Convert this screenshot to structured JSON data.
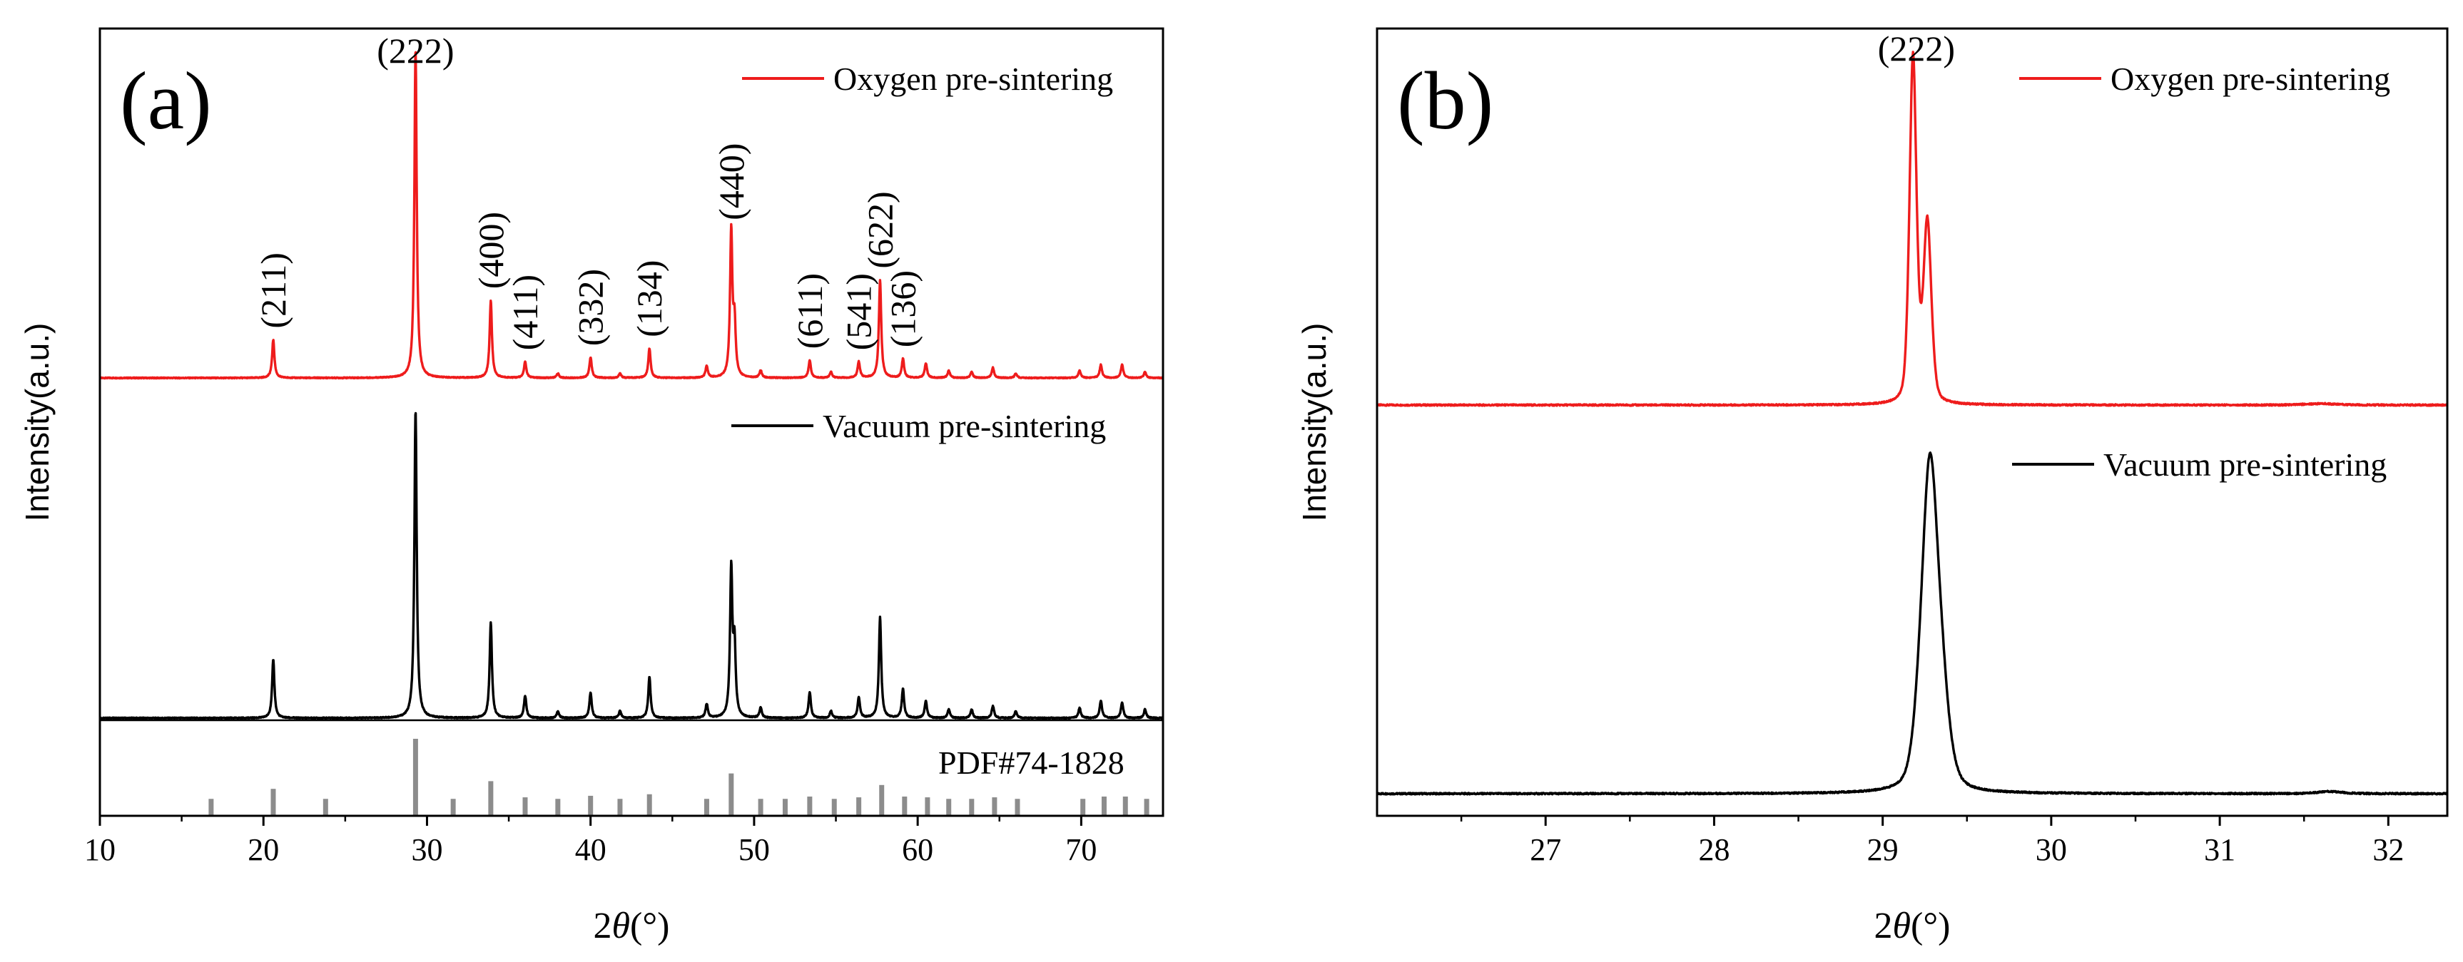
{
  "chart_data": [
    {
      "type": "line",
      "panel_label": "(a)",
      "xlabel_prefix": "2",
      "xlabel_symbol": "θ",
      "xlabel_suffix": "(°)",
      "ylabel": "Intensity(a.u.)",
      "xlim": [
        10,
        75
      ],
      "xticks": [
        10,
        20,
        30,
        40,
        50,
        60,
        70
      ],
      "grid": false,
      "legend_position": "top-right",
      "series": [
        {
          "name": "Oxygen pre-sintering",
          "color": "#ee1c1c",
          "peaks": [
            {
              "x": 20.6,
              "h": 0.26,
              "label": "(211)"
            },
            {
              "x": 29.3,
              "h": 2.25,
              "label": "(222)"
            },
            {
              "x": 33.9,
              "h": 0.53,
              "label": "(400)"
            },
            {
              "x": 36.0,
              "h": 0.11,
              "label": "(411)"
            },
            {
              "x": 38.0,
              "h": 0.03
            },
            {
              "x": 40.0,
              "h": 0.14,
              "label": "(332)"
            },
            {
              "x": 41.8,
              "h": 0.03
            },
            {
              "x": 43.6,
              "h": 0.2,
              "label": "(134)"
            },
            {
              "x": 47.1,
              "h": 0.08
            },
            {
              "x": 48.6,
              "h": 1.0,
              "label": "(440)"
            },
            {
              "x": 48.8,
              "h": 0.35
            },
            {
              "x": 50.4,
              "h": 0.05
            },
            {
              "x": 53.4,
              "h": 0.12,
              "label": "(611)"
            },
            {
              "x": 54.7,
              "h": 0.04
            },
            {
              "x": 56.4,
              "h": 0.11,
              "label": "(541)"
            },
            {
              "x": 57.7,
              "h": 0.67,
              "label": "(622)"
            },
            {
              "x": 59.1,
              "h": 0.13,
              "label": "(136)"
            },
            {
              "x": 60.5,
              "h": 0.1
            },
            {
              "x": 61.9,
              "h": 0.05
            },
            {
              "x": 63.3,
              "h": 0.04
            },
            {
              "x": 64.6,
              "h": 0.07
            },
            {
              "x": 66.0,
              "h": 0.03
            },
            {
              "x": 69.9,
              "h": 0.05
            },
            {
              "x": 71.2,
              "h": 0.09
            },
            {
              "x": 72.5,
              "h": 0.09
            },
            {
              "x": 73.9,
              "h": 0.04
            }
          ]
        },
        {
          "name": "Vacuum pre-sintering",
          "color": "#000000",
          "peaks": [
            {
              "x": 20.6,
              "h": 0.34
            },
            {
              "x": 29.3,
              "h": 1.8
            },
            {
              "x": 33.9,
              "h": 0.56
            },
            {
              "x": 36.0,
              "h": 0.13
            },
            {
              "x": 38.0,
              "h": 0.04
            },
            {
              "x": 40.0,
              "h": 0.15
            },
            {
              "x": 41.8,
              "h": 0.04
            },
            {
              "x": 43.6,
              "h": 0.24
            },
            {
              "x": 47.1,
              "h": 0.08
            },
            {
              "x": 48.6,
              "h": 0.86
            },
            {
              "x": 48.8,
              "h": 0.4
            },
            {
              "x": 50.4,
              "h": 0.06
            },
            {
              "x": 53.4,
              "h": 0.15
            },
            {
              "x": 54.7,
              "h": 0.04
            },
            {
              "x": 56.4,
              "h": 0.12
            },
            {
              "x": 57.7,
              "h": 0.59
            },
            {
              "x": 59.1,
              "h": 0.17
            },
            {
              "x": 60.5,
              "h": 0.1
            },
            {
              "x": 61.9,
              "h": 0.05
            },
            {
              "x": 63.3,
              "h": 0.05
            },
            {
              "x": 64.6,
              "h": 0.07
            },
            {
              "x": 66.0,
              "h": 0.04
            },
            {
              "x": 69.9,
              "h": 0.06
            },
            {
              "x": 71.2,
              "h": 0.1
            },
            {
              "x": 72.5,
              "h": 0.09
            },
            {
              "x": 73.9,
              "h": 0.05
            }
          ]
        }
      ],
      "reference": {
        "name": "PDF#74-1828",
        "color": "#8c8c8c",
        "sticks": [
          {
            "x": 16.8,
            "h": 0.22
          },
          {
            "x": 20.6,
            "h": 0.35
          },
          {
            "x": 23.8,
            "h": 0.22
          },
          {
            "x": 29.3,
            "h": 1.0
          },
          {
            "x": 31.6,
            "h": 0.22
          },
          {
            "x": 33.9,
            "h": 0.45
          },
          {
            "x": 36.0,
            "h": 0.24
          },
          {
            "x": 38.0,
            "h": 0.22
          },
          {
            "x": 40.0,
            "h": 0.26
          },
          {
            "x": 41.8,
            "h": 0.22
          },
          {
            "x": 43.6,
            "h": 0.28
          },
          {
            "x": 47.1,
            "h": 0.22
          },
          {
            "x": 48.6,
            "h": 0.55
          },
          {
            "x": 50.4,
            "h": 0.22
          },
          {
            "x": 51.9,
            "h": 0.22
          },
          {
            "x": 53.4,
            "h": 0.25
          },
          {
            "x": 54.9,
            "h": 0.22
          },
          {
            "x": 56.4,
            "h": 0.24
          },
          {
            "x": 57.8,
            "h": 0.4
          },
          {
            "x": 59.2,
            "h": 0.25
          },
          {
            "x": 60.6,
            "h": 0.24
          },
          {
            "x": 61.9,
            "h": 0.22
          },
          {
            "x": 63.3,
            "h": 0.22
          },
          {
            "x": 64.7,
            "h": 0.24
          },
          {
            "x": 66.1,
            "h": 0.22
          },
          {
            "x": 70.1,
            "h": 0.22
          },
          {
            "x": 71.4,
            "h": 0.25
          },
          {
            "x": 72.7,
            "h": 0.25
          },
          {
            "x": 74.0,
            "h": 0.22
          }
        ]
      }
    },
    {
      "type": "line",
      "panel_label": "(b)",
      "xlabel_prefix": "2",
      "xlabel_symbol": "θ",
      "xlabel_suffix": "(°)",
      "ylabel": "Intensity(a.u.)",
      "xlim": [
        26.0,
        32.35
      ],
      "xticks": [
        27,
        28,
        29,
        30,
        31,
        32
      ],
      "minor_xticks": [
        26.5,
        27.5,
        28.5,
        29.5,
        30.5,
        31.5
      ],
      "grid": false,
      "legend_position": "top-right",
      "peak_label": {
        "text": "(222)",
        "x": 29.2
      },
      "series": [
        {
          "name": "Oxygen pre-sintering",
          "color": "#ee1c1c",
          "baseline": 0.12,
          "peaks": [
            {
              "x": 29.18,
              "h": 1.0,
              "w": 0.022
            },
            {
              "x": 29.265,
              "h": 0.52,
              "w": 0.025
            },
            {
              "x": 31.6,
              "h": 0.004,
              "w": 0.1
            }
          ]
        },
        {
          "name": "Vacuum pre-sintering",
          "color": "#000000",
          "baseline": 0.0,
          "peaks": [
            {
              "x": 29.28,
              "h": 0.93,
              "w": 0.055
            },
            {
              "x": 29.36,
              "h": 0.12,
              "w": 0.05
            },
            {
              "x": 31.65,
              "h": 0.006,
              "w": 0.08
            }
          ]
        }
      ]
    }
  ]
}
